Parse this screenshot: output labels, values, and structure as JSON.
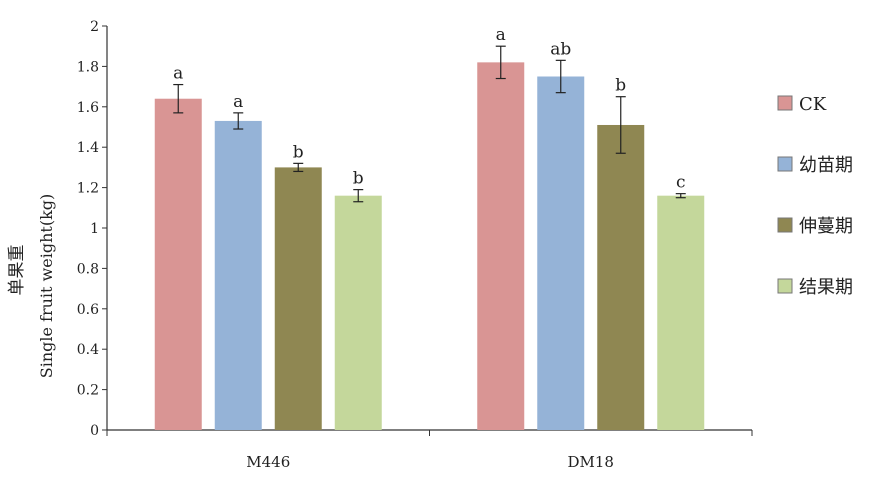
{
  "chart_data": {
    "type": "bar",
    "categories": [
      "M446",
      "DM18"
    ],
    "series": [
      {
        "name": "CK",
        "color": "#D99594",
        "values": [
          1.64,
          1.82
        ],
        "errors": [
          0.07,
          0.08
        ],
        "labels": [
          "a",
          "a"
        ]
      },
      {
        "name": "幼苗期",
        "color": "#95B3D7",
        "values": [
          1.53,
          1.75
        ],
        "errors": [
          0.04,
          0.08
        ],
        "labels": [
          "a",
          "ab"
        ]
      },
      {
        "name": "伸蔓期",
        "color": "#8F8752",
        "values": [
          1.3,
          1.51
        ],
        "errors": [
          0.02,
          0.14
        ],
        "labels": [
          "b",
          "b"
        ]
      },
      {
        "name": "结果期",
        "color": "#C4D79B",
        "values": [
          1.16,
          1.16
        ],
        "errors": [
          0.03,
          0.01
        ],
        "labels": [
          "b",
          "c"
        ]
      }
    ],
    "ylabel_cn": "单果重",
    "ylabel_en": "Single fruit weight(kg)",
    "ylim": [
      0,
      2
    ],
    "yticks": [
      "0",
      "0.2",
      "0.4",
      "0.6",
      "0.8",
      "1",
      "1.2",
      "1.4",
      "1.6",
      "1.8",
      "2"
    ],
    "grid": false,
    "legend_position": "right"
  }
}
